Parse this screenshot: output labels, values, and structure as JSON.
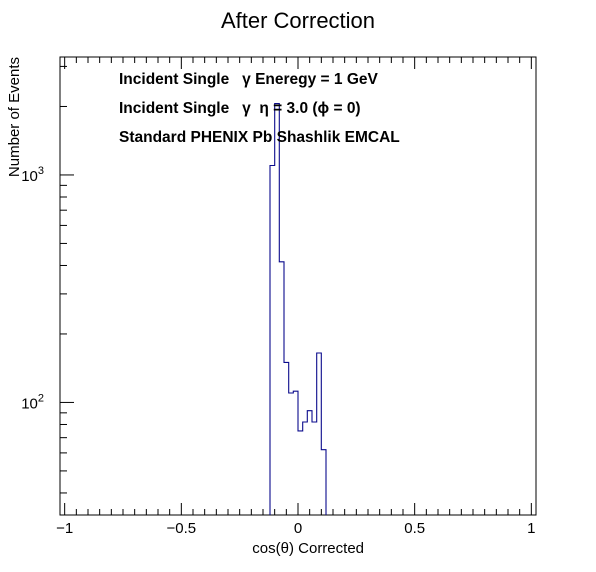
{
  "chart_data": {
    "type": "histogram",
    "title": "After Correction",
    "xlabel": "cos(θ) Corrected",
    "ylabel": "Number of Events",
    "xlim": [
      -1.02,
      1.02
    ],
    "ylim": [
      32,
      3300
    ],
    "y_scale": "log",
    "x_ticks": [
      {
        "value": -1,
        "label": "−1"
      },
      {
        "value": -0.5,
        "label": "−0.5"
      },
      {
        "value": 0,
        "label": "0"
      },
      {
        "value": 0.5,
        "label": "0.5"
      },
      {
        "value": 1,
        "label": "1"
      }
    ],
    "y_ticks": [
      {
        "value": 100,
        "base": "10",
        "exp": "2"
      },
      {
        "value": 1000,
        "base": "10",
        "exp": "3"
      }
    ],
    "line_color": "#0a0a8c",
    "grid": false,
    "annotations": [
      "Incident Single   γ Eneregy = 1 GeV",
      "Incident Single   γ  η = 3.0 (ϕ = 0)",
      "Standard PHENIX Pb Shashlik EMCAL"
    ],
    "bins": [
      {
        "x0": -0.12,
        "x1": -0.1,
        "count": 1100
      },
      {
        "x0": -0.1,
        "x1": -0.08,
        "count": 2060
      },
      {
        "x0": -0.08,
        "x1": -0.06,
        "count": 415
      },
      {
        "x0": -0.06,
        "x1": -0.04,
        "count": 150
      },
      {
        "x0": -0.04,
        "x1": -0.02,
        "count": 110
      },
      {
        "x0": -0.02,
        "x1": 0.0,
        "count": 112
      },
      {
        "x0": 0.0,
        "x1": 0.02,
        "count": 75
      },
      {
        "x0": 0.02,
        "x1": 0.04,
        "count": 82
      },
      {
        "x0": 0.04,
        "x1": 0.06,
        "count": 92
      },
      {
        "x0": 0.06,
        "x1": 0.08,
        "count": 82
      },
      {
        "x0": 0.08,
        "x1": 0.1,
        "count": 165
      },
      {
        "x0": 0.1,
        "x1": 0.12,
        "count": 62
      }
    ]
  }
}
